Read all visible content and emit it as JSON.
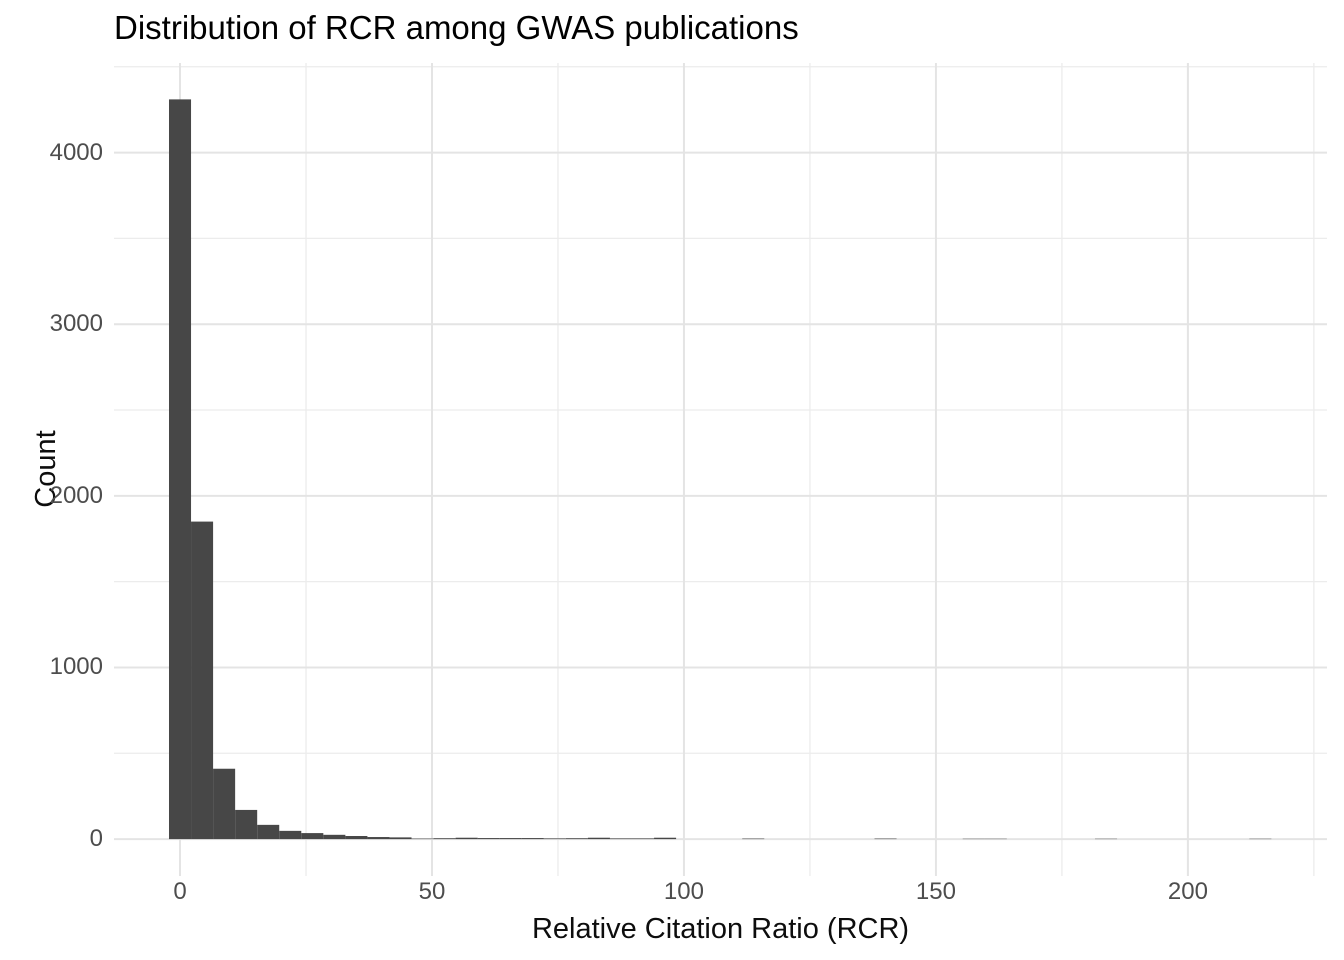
{
  "title": "Distribution of RCR among GWAS publications",
  "x_axis": {
    "label": "Relative Citation Ratio (RCR)",
    "tick_labels": [
      "0",
      "50",
      "100",
      "150",
      "200"
    ]
  },
  "y_axis": {
    "label": "Count",
    "tick_labels": [
      "0",
      "1000",
      "2000",
      "3000",
      "4000"
    ]
  },
  "chart_data": {
    "type": "bar",
    "subtype": "histogram",
    "title": "Distribution of RCR among GWAS publications",
    "xlabel": "Relative Citation Ratio (RCR)",
    "ylabel": "Count",
    "xlim": [
      -13.1,
      227.6
    ],
    "ylim": [
      -215,
      4522
    ],
    "grid": "on",
    "legend": "none",
    "x_major_ticks": [
      0,
      50,
      100,
      150,
      200
    ],
    "x_minor_ticks": [
      25,
      75,
      125,
      175,
      225
    ],
    "y_major_ticks": [
      0,
      1000,
      2000,
      3000,
      4000
    ],
    "y_minor_ticks": [
      500,
      1500,
      2500,
      3500,
      4500
    ],
    "bins": {
      "start": -2.1875,
      "width": 4.375,
      "count": 50
    },
    "counts": [
      4310,
      1850,
      410,
      170,
      83,
      48,
      35,
      25,
      18,
      12,
      10,
      3,
      5,
      8,
      6,
      6,
      6,
      4,
      5,
      8,
      4,
      4,
      8,
      0,
      0,
      0,
      3,
      0,
      0,
      0,
      0,
      0,
      3,
      0,
      0,
      0,
      2,
      2,
      0,
      0,
      0,
      0,
      2,
      0,
      0,
      0,
      0,
      0,
      0,
      2
    ],
    "colors": {
      "bar": "#474747",
      "grid_major": "#e4e4e4",
      "grid_minor": "#ececec",
      "tick_text": "#4d4d4d",
      "title_text": "#000000",
      "background": "#ffffff"
    }
  }
}
